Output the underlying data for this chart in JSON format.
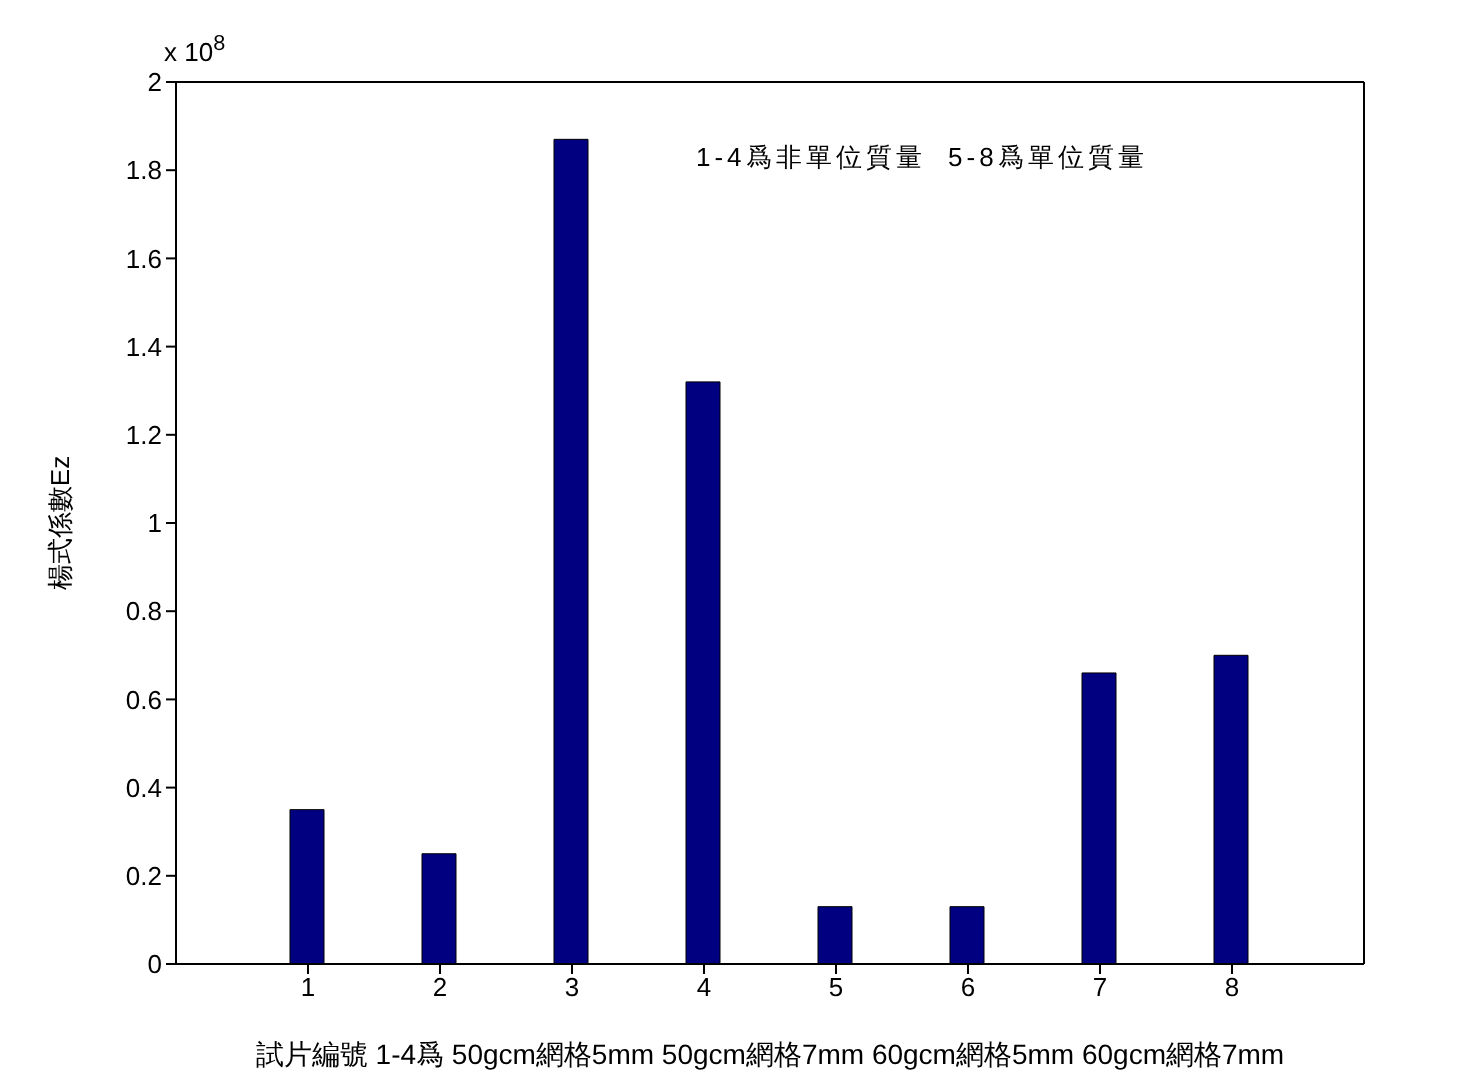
{
  "chart_data": {
    "type": "bar",
    "ylabel": "楊式係數Ez",
    "xlabel": "試片編號 1-4爲 50gcm網格5mm 50gcm網格7mm 60gcm網格5mm 60gcm網格7mm",
    "categories": [
      "1",
      "2",
      "3",
      "4",
      "5",
      "6",
      "7",
      "8"
    ],
    "values": [
      0.35,
      0.25,
      1.87,
      1.32,
      0.13,
      0.13,
      0.66,
      0.7
    ],
    "color": "#000080",
    "ylim": [
      0,
      2
    ],
    "yticks": [
      0,
      0.2,
      0.4,
      0.6,
      0.8,
      1,
      1.2,
      1.4,
      1.6,
      1.8,
      2
    ],
    "annotations": [
      "x 10$^{8}$",
      "1-4爲非單位質量  5-8爲單位質量"
    ],
    "grid": false,
    "legend": false
  }
}
